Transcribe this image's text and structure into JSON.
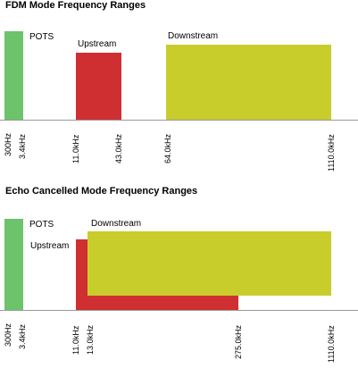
{
  "fdm": {
    "title": "FDM Mode Frequency Ranges",
    "labels": {
      "pots": "POTS",
      "upstream": "Upstream",
      "downstream": "Downstream"
    },
    "ticks": [
      "300Hz",
      "3.4kHz",
      "11.0kHz",
      "43.0kHz",
      "64.0kHz",
      "1110.0kHz"
    ]
  },
  "echo": {
    "title": "Echo Cancelled Mode Frequency Ranges",
    "labels": {
      "pots": "POTS",
      "upstream": "Upstream",
      "downstream": "Downstream"
    },
    "ticks": [
      "300Hz",
      "3.4kHz",
      "11.0kHz",
      "13.0kHz",
      "275.0kHz",
      "1110.0kHz"
    ]
  },
  "colors": {
    "pots": "#6cc36b",
    "upstream": "#d02f31",
    "downstream": "#c8cd2c",
    "axis": "#9a9a9a"
  }
}
